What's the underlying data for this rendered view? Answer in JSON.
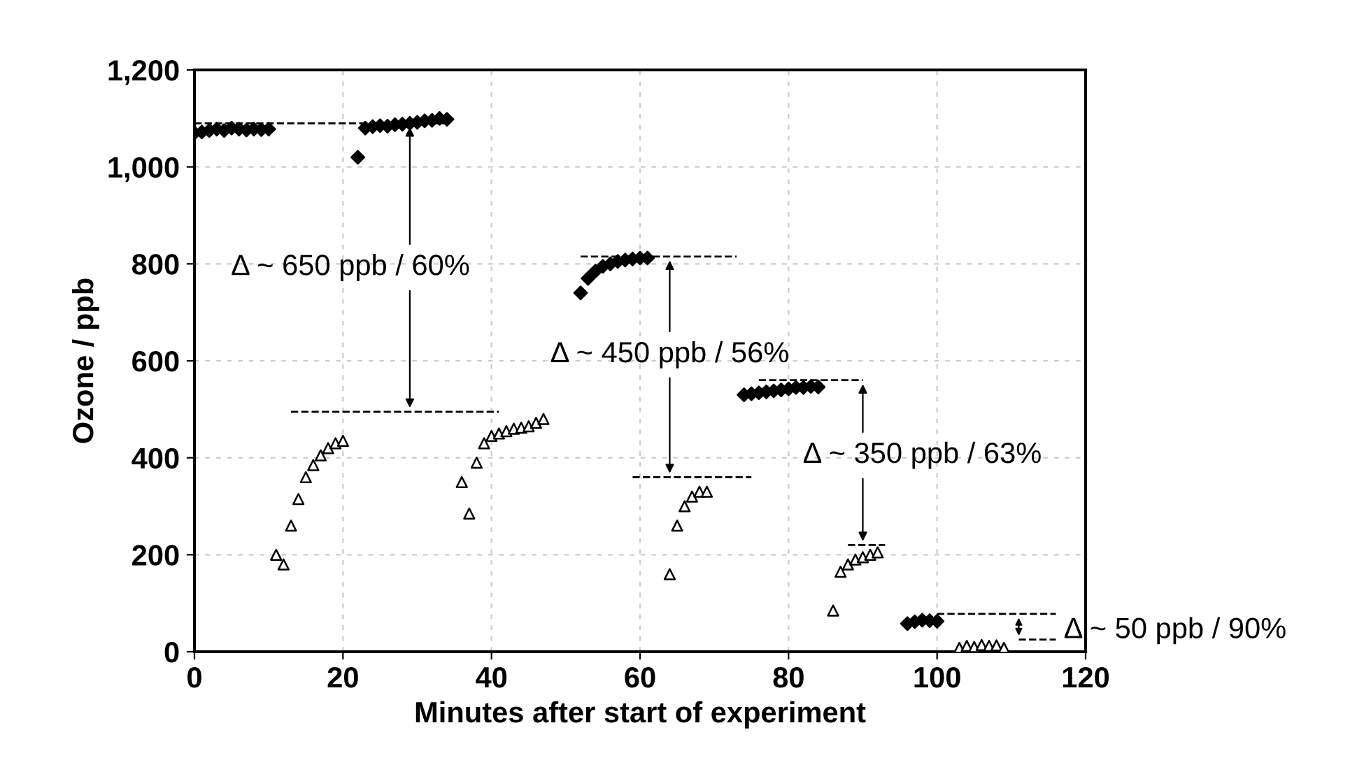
{
  "chart_data": {
    "type": "scatter",
    "xlabel": "Minutes after start of experiment",
    "ylabel": "Ozone / ppb",
    "xlim": [
      0,
      120
    ],
    "xticks": [
      0,
      20,
      40,
      60,
      80,
      100,
      120
    ],
    "ylim": [
      0,
      1200
    ],
    "yticks": [
      0,
      200,
      400,
      600,
      800,
      {
        "value": 1000,
        "label": "1,000"
      },
      {
        "value": 1200,
        "label": "1,200"
      }
    ],
    "grid": true,
    "legend": false,
    "series": [
      {
        "marker": "diamond",
        "color": "#000000",
        "x": [
          0,
          1,
          2,
          3,
          4,
          5,
          6,
          7,
          8,
          9,
          10,
          22,
          23,
          24,
          25,
          26,
          27,
          28,
          29,
          30,
          31,
          32,
          33,
          34,
          52,
          53,
          54,
          55,
          56,
          57,
          58,
          59,
          60,
          61,
          74,
          75,
          76,
          77,
          78,
          79,
          80,
          81,
          82,
          83,
          84,
          96,
          97,
          98,
          99,
          100
        ],
        "values": [
          1070,
          1072,
          1075,
          1078,
          1075,
          1080,
          1078,
          1076,
          1078,
          1077,
          1078,
          1020,
          1080,
          1083,
          1085,
          1084,
          1087,
          1088,
          1090,
          1092,
          1095,
          1096,
          1100,
          1098,
          740,
          770,
          785,
          795,
          800,
          805,
          808,
          810,
          812,
          812,
          530,
          532,
          534,
          536,
          538,
          540,
          542,
          545,
          545,
          547,
          546,
          58,
          62,
          65,
          64,
          63
        ]
      },
      {
        "marker": "triangle",
        "color": "#000000",
        "x": [
          11,
          12,
          13,
          14,
          15,
          16,
          17,
          18,
          19,
          20,
          36,
          37,
          38,
          39,
          40,
          41,
          42,
          43,
          44,
          45,
          46,
          47,
          64,
          65,
          66,
          67,
          68,
          69,
          86,
          87,
          88,
          89,
          90,
          91,
          92,
          103,
          104,
          105,
          106,
          107,
          108,
          109
        ],
        "values": [
          200,
          180,
          260,
          315,
          360,
          385,
          405,
          420,
          430,
          435,
          350,
          285,
          390,
          430,
          445,
          450,
          455,
          460,
          462,
          465,
          472,
          480,
          160,
          260,
          300,
          320,
          330,
          330,
          85,
          165,
          180,
          190,
          195,
          200,
          205,
          8,
          12,
          10,
          14,
          12,
          13,
          8
        ]
      },
      {
        "type": "line",
        "line_style": "dashed",
        "marker": "none",
        "color": "#000000",
        "x": [
          0,
          34
        ],
        "values": [
          1090,
          1090
        ]
      },
      {
        "type": "line",
        "line_style": "dashed",
        "marker": "none",
        "color": "#000000",
        "x": [
          13,
          41
        ],
        "values": [
          495,
          495
        ]
      },
      {
        "type": "line",
        "line_style": "dashed",
        "marker": "none",
        "color": "#000000",
        "x": [
          52,
          73
        ],
        "values": [
          815,
          815
        ]
      },
      {
        "type": "line",
        "line_style": "dashed",
        "marker": "none",
        "color": "#000000",
        "x": [
          59,
          75
        ],
        "values": [
          360,
          360
        ]
      },
      {
        "type": "line",
        "line_style": "dashed",
        "marker": "none",
        "color": "#000000",
        "x": [
          76,
          90
        ],
        "values": [
          560,
          560
        ]
      },
      {
        "type": "line",
        "line_style": "dashed",
        "marker": "none",
        "color": "#000000",
        "x": [
          88,
          93
        ],
        "values": [
          220,
          220
        ]
      },
      {
        "type": "line",
        "line_style": "dashed",
        "marker": "none",
        "color": "#000000",
        "x": [
          100,
          116
        ],
        "values": [
          78,
          78
        ]
      },
      {
        "type": "line",
        "line_style": "dashed",
        "marker": "none",
        "color": "#000000",
        "x": [
          111,
          116
        ],
        "values": [
          25,
          25
        ]
      }
    ],
    "annotations": [
      {
        "text": "Δ ~ 650 ppb / 60%",
        "x": 29,
        "y": 1090
      },
      {
        "text": "Δ ~ 450 ppb / 56%",
        "x": 64,
        "y": 815
      },
      {
        "text": "Δ ~ 350 ppb / 63%",
        "x": 90,
        "y": 560
      },
      {
        "text": "Δ ~ 50 ppb / 90%",
        "x": 111,
        "y": 25
      }
    ]
  }
}
